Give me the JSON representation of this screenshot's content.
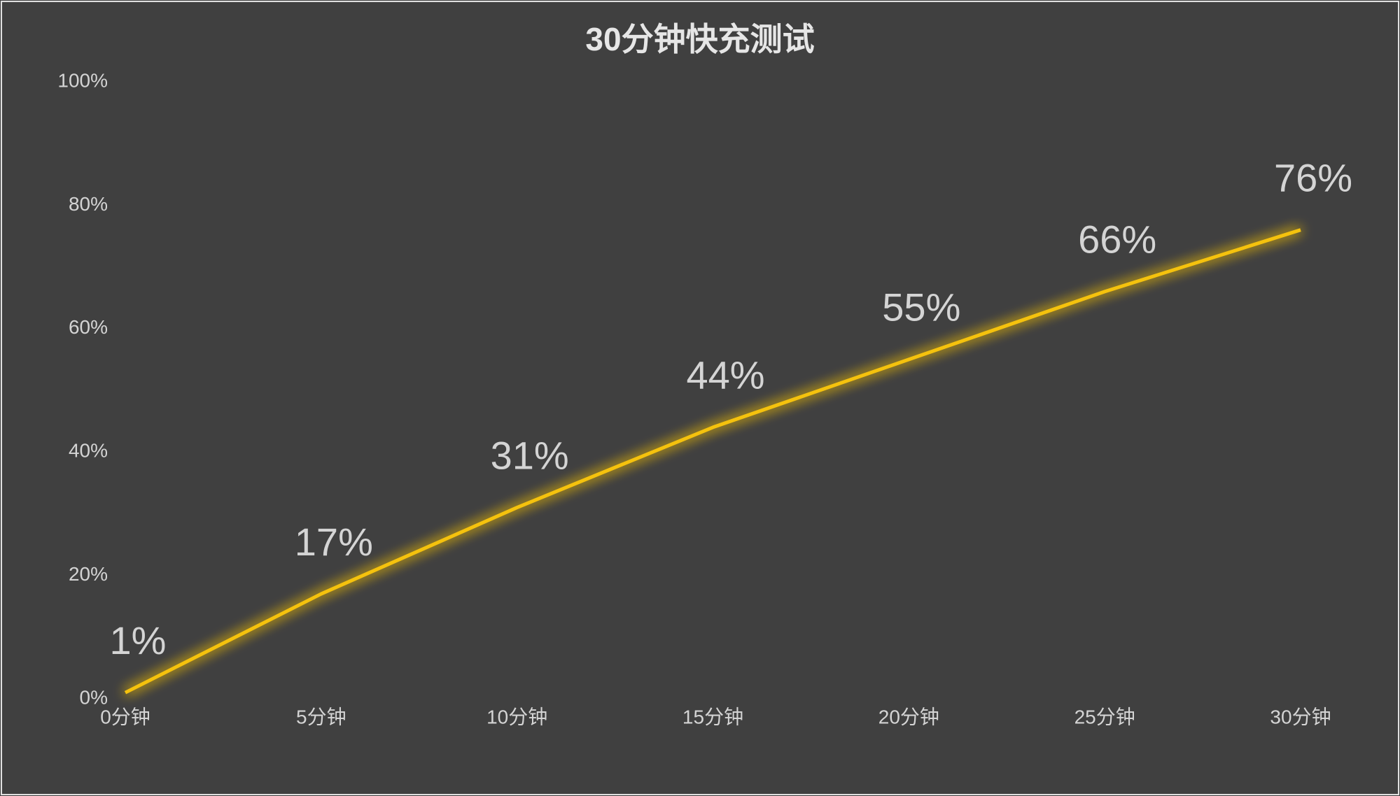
{
  "chart_data": {
    "type": "line",
    "title": "30分钟快充测试",
    "categories": [
      "0分钟",
      "5分钟",
      "10分钟",
      "15分钟",
      "20分钟",
      "25分钟",
      "30分钟"
    ],
    "series": [
      {
        "color": "#f5c211",
        "values": [
          1,
          17,
          31,
          44,
          55,
          66,
          76
        ],
        "value_labels": [
          "1%",
          "17%",
          "31%",
          "44%",
          "55%",
          "66%",
          "76%"
        ]
      }
    ],
    "ylim": [
      0,
      100
    ],
    "yticks": [
      {
        "value": 0,
        "label": "0%"
      },
      {
        "value": 20,
        "label": "20%"
      },
      {
        "value": 40,
        "label": "40%"
      },
      {
        "value": 60,
        "label": "60%"
      },
      {
        "value": 80,
        "label": "80%"
      },
      {
        "value": 100,
        "label": "100%"
      }
    ],
    "grid": false
  }
}
